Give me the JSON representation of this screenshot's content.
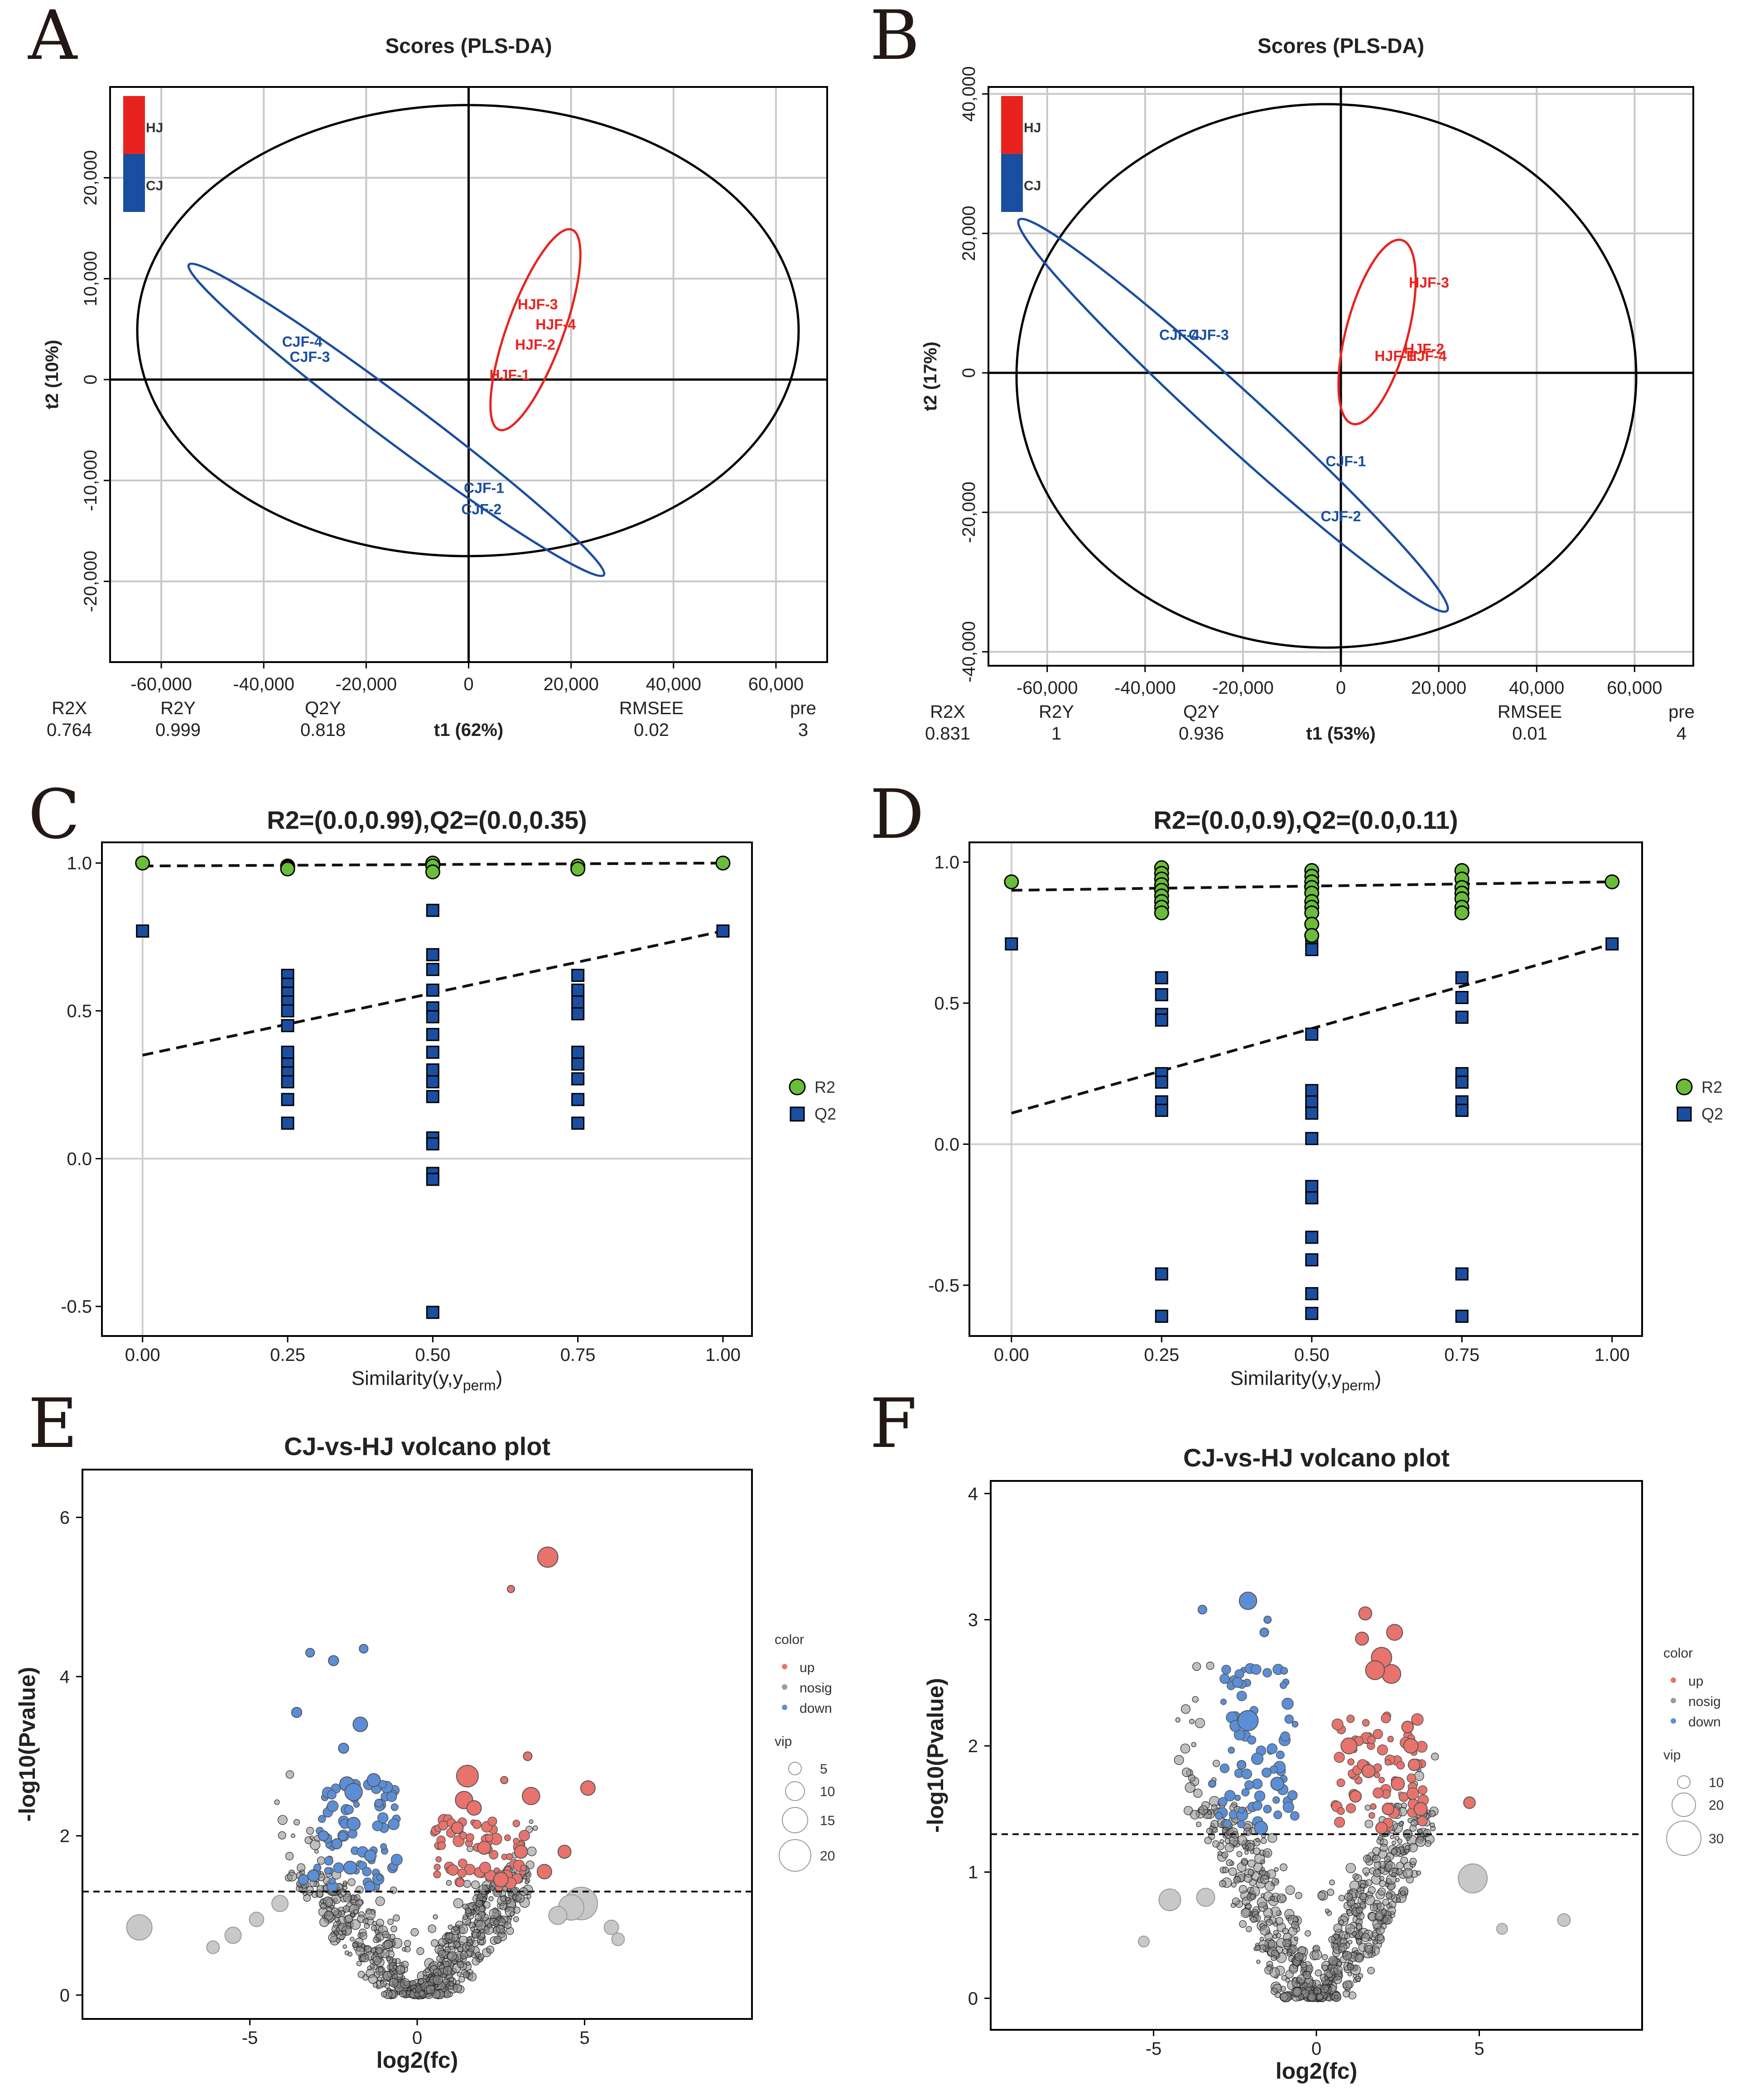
{
  "panel_letters": [
    "A",
    "B",
    "C",
    "D",
    "E",
    "F"
  ],
  "colors": {
    "red": "#e8231f",
    "blue": "#1a4ea1",
    "green": "#6abd3a",
    "up": "#e8736c",
    "down": "#5b8ed6",
    "nosig": "#c8c8c8"
  },
  "chart_data": [
    {
      "panel": "A",
      "type": "scatter",
      "title": "Scores (PLS-DA)",
      "xlabel": "t1 (62%)",
      "ylabel": "t2 (10%)",
      "xlim": [
        -70000,
        70000
      ],
      "ylim": [
        -28000,
        29000
      ],
      "xticks": [
        -60000,
        -40000,
        -20000,
        0,
        20000,
        40000,
        60000
      ],
      "xtick_labels": [
        "-60,000",
        "-40,000",
        "-20,000",
        "0",
        "20,000",
        "40,000",
        "60,000"
      ],
      "yticks": [
        -20000,
        -10000,
        0,
        10000,
        20000
      ],
      "ytick_labels": [
        "-20,000",
        "-10,000",
        "0",
        "10,000",
        "20,000"
      ],
      "legend": [
        {
          "name": "HJ",
          "color": "#e8231f"
        },
        {
          "name": "CJ",
          "color": "#1a4ea1"
        }
      ],
      "points": [
        {
          "label": "HJF-3",
          "x": 13500,
          "y": 7500,
          "group": "HJ"
        },
        {
          "label": "HJF-4",
          "x": 17000,
          "y": 5500,
          "group": "HJ"
        },
        {
          "label": "HJF-2",
          "x": 13000,
          "y": 3500,
          "group": "HJ"
        },
        {
          "label": "HJF-1",
          "x": 8000,
          "y": 500,
          "group": "HJ"
        },
        {
          "label": "CJF-4",
          "x": -32500,
          "y": 3800,
          "group": "CJ"
        },
        {
          "label": "CJF-3",
          "x": -31000,
          "y": 2300,
          "group": "CJ"
        },
        {
          "label": "CJF-1",
          "x": 3000,
          "y": -10700,
          "group": "CJ"
        },
        {
          "label": "CJF-2",
          "x": 2500,
          "y": -12800,
          "group": "CJ"
        }
      ],
      "stats": {
        "headers": [
          "R2X",
          "R2Y",
          "Q2Y",
          "RMSEE",
          "pre"
        ],
        "values": [
          "0.764",
          "0.999",
          "0.818",
          "0.02",
          "3"
        ]
      }
    },
    {
      "panel": "B",
      "type": "scatter",
      "title": "Scores (PLS-DA)",
      "xlabel": "t1 (53%)",
      "ylabel": "t2 (17%)",
      "xlim": [
        -72000,
        72000
      ],
      "ylim": [
        -42000,
        41000
      ],
      "xticks": [
        -60000,
        -40000,
        -20000,
        0,
        20000,
        40000,
        60000
      ],
      "xtick_labels": [
        "-60,000",
        "-40,000",
        "-20,000",
        "0",
        "20,000",
        "40,000",
        "60,000"
      ],
      "yticks": [
        -40000,
        -20000,
        0,
        20000,
        40000
      ],
      "ytick_labels": [
        "-40,000",
        "-20,000",
        "0",
        "20,000",
        "40,000"
      ],
      "legend": [
        {
          "name": "HJ",
          "color": "#e8231f"
        },
        {
          "name": "CJ",
          "color": "#1a4ea1"
        }
      ],
      "points": [
        {
          "label": "HJF-3",
          "x": 18000,
          "y": 13000,
          "group": "HJ"
        },
        {
          "label": "HJF-2",
          "x": 17000,
          "y": 3500,
          "group": "HJ"
        },
        {
          "label": "HJF-4",
          "x": 17500,
          "y": 2500,
          "group": "HJ"
        },
        {
          "label": "HJF-1",
          "x": 11000,
          "y": 2500,
          "group": "HJ"
        },
        {
          "label": "CJF-4",
          "x": -33000,
          "y": 5500,
          "group": "CJ"
        },
        {
          "label": "CJF-3",
          "x": -27000,
          "y": 5500,
          "group": "CJ"
        },
        {
          "label": "CJF-1",
          "x": 1000,
          "y": -12600,
          "group": "CJ"
        },
        {
          "label": "CJF-2",
          "x": 0,
          "y": -20500,
          "group": "CJ"
        }
      ],
      "stats": {
        "headers": [
          "R2X",
          "R2Y",
          "Q2Y",
          "RMSEE",
          "pre"
        ],
        "values": [
          "0.831",
          "1",
          "0.936",
          "0.01",
          "4"
        ]
      }
    },
    {
      "panel": "C",
      "type": "scatter",
      "title": "R2=(0.0,0.99),Q2=(0.0,0.35)",
      "xlabel": "Similarity(y,y",
      "xlabel_sub": "perm",
      "xlabel_end": ")",
      "xlim": [
        -0.07,
        1.05
      ],
      "ylim": [
        -0.6,
        1.07
      ],
      "xticks": [
        0,
        0.25,
        0.5,
        0.75,
        1.0
      ],
      "xtick_labels": [
        "0.00",
        "0.25",
        "0.50",
        "0.75",
        "1.00"
      ],
      "yticks": [
        -0.5,
        0,
        0.5,
        1.0
      ],
      "ytick_labels": [
        "-0.5",
        "0.0",
        "0.5",
        "1.0"
      ],
      "legend": [
        "R2",
        "Q2"
      ],
      "R2": [
        [
          0,
          1.0
        ],
        [
          0.25,
          0.99
        ],
        [
          0.25,
          0.985
        ],
        [
          0.25,
          0.98
        ],
        [
          0.5,
          1.0
        ],
        [
          0.5,
          0.99
        ],
        [
          0.5,
          0.97
        ],
        [
          0.75,
          0.99
        ],
        [
          0.75,
          0.98
        ],
        [
          1.0,
          1.0
        ]
      ],
      "Q2": [
        [
          0,
          0.77
        ],
        [
          0.25,
          0.62
        ],
        [
          0.25,
          0.59
        ],
        [
          0.25,
          0.56
        ],
        [
          0.25,
          0.53
        ],
        [
          0.25,
          0.5
        ],
        [
          0.25,
          0.45
        ],
        [
          0.25,
          0.36
        ],
        [
          0.25,
          0.32
        ],
        [
          0.25,
          0.29
        ],
        [
          0.25,
          0.26
        ],
        [
          0.25,
          0.2
        ],
        [
          0.25,
          0.12
        ],
        [
          0.5,
          0.84
        ],
        [
          0.5,
          0.69
        ],
        [
          0.5,
          0.64
        ],
        [
          0.5,
          0.57
        ],
        [
          0.5,
          0.51
        ],
        [
          0.5,
          0.48
        ],
        [
          0.5,
          0.42
        ],
        [
          0.5,
          0.36
        ],
        [
          0.5,
          0.3
        ],
        [
          0.5,
          0.26
        ],
        [
          0.5,
          0.21
        ],
        [
          0.5,
          0.07
        ],
        [
          0.5,
          0.05
        ],
        [
          0.5,
          -0.05
        ],
        [
          0.5,
          -0.07
        ],
        [
          0.5,
          -0.52
        ],
        [
          0.75,
          0.62
        ],
        [
          0.75,
          0.57
        ],
        [
          0.75,
          0.53
        ],
        [
          0.75,
          0.49
        ],
        [
          0.75,
          0.36
        ],
        [
          0.75,
          0.32
        ],
        [
          0.75,
          0.27
        ],
        [
          0.75,
          0.2
        ],
        [
          0.75,
          0.12
        ],
        [
          1.0,
          0.77
        ]
      ],
      "R2_line": [
        [
          0,
          0.99
        ],
        [
          1.0,
          1.0
        ]
      ],
      "Q2_line": [
        [
          0,
          0.35
        ],
        [
          1.0,
          0.77
        ]
      ]
    },
    {
      "panel": "D",
      "type": "scatter",
      "title": "R2=(0.0,0.9),Q2=(0.0,0.11)",
      "xlabel": "Similarity(y,y",
      "xlabel_sub": "perm",
      "xlabel_end": ")",
      "xlim": [
        -0.07,
        1.05
      ],
      "ylim": [
        -0.68,
        1.07
      ],
      "xticks": [
        0,
        0.25,
        0.5,
        0.75,
        1.0
      ],
      "xtick_labels": [
        "0.00",
        "0.25",
        "0.50",
        "0.75",
        "1.00"
      ],
      "yticks": [
        -0.5,
        0,
        0.5,
        1.0
      ],
      "ytick_labels": [
        "-0.5",
        "0.0",
        "0.5",
        "1.0"
      ],
      "legend": [
        "R2",
        "Q2"
      ],
      "R2": [
        [
          0,
          0.93
        ],
        [
          0.25,
          0.98
        ],
        [
          0.25,
          0.96
        ],
        [
          0.25,
          0.94
        ],
        [
          0.25,
          0.92
        ],
        [
          0.25,
          0.9
        ],
        [
          0.25,
          0.88
        ],
        [
          0.25,
          0.86
        ],
        [
          0.25,
          0.84
        ],
        [
          0.25,
          0.82
        ],
        [
          0.5,
          0.97
        ],
        [
          0.5,
          0.95
        ],
        [
          0.5,
          0.93
        ],
        [
          0.5,
          0.91
        ],
        [
          0.5,
          0.89
        ],
        [
          0.5,
          0.86
        ],
        [
          0.5,
          0.84
        ],
        [
          0.5,
          0.82
        ],
        [
          0.5,
          0.78
        ],
        [
          0.5,
          0.74
        ],
        [
          0.75,
          0.97
        ],
        [
          0.75,
          0.94
        ],
        [
          0.75,
          0.91
        ],
        [
          0.75,
          0.89
        ],
        [
          0.75,
          0.87
        ],
        [
          0.75,
          0.84
        ],
        [
          0.75,
          0.82
        ],
        [
          1.0,
          0.93
        ]
      ],
      "Q2": [
        [
          0,
          0.71
        ],
        [
          0.25,
          0.59
        ],
        [
          0.25,
          0.53
        ],
        [
          0.25,
          0.46
        ],
        [
          0.25,
          0.44
        ],
        [
          0.25,
          0.25
        ],
        [
          0.25,
          0.22
        ],
        [
          0.25,
          0.15
        ],
        [
          0.25,
          0.12
        ],
        [
          0.25,
          -0.46
        ],
        [
          0.25,
          -0.61
        ],
        [
          0.5,
          0.72
        ],
        [
          0.5,
          0.69
        ],
        [
          0.5,
          0.39
        ],
        [
          0.5,
          0.19
        ],
        [
          0.5,
          0.15
        ],
        [
          0.5,
          0.11
        ],
        [
          0.5,
          0.02
        ],
        [
          0.5,
          -0.15
        ],
        [
          0.5,
          -0.19
        ],
        [
          0.5,
          -0.33
        ],
        [
          0.5,
          -0.41
        ],
        [
          0.5,
          -0.53
        ],
        [
          0.5,
          -0.6
        ],
        [
          0.75,
          0.59
        ],
        [
          0.75,
          0.52
        ],
        [
          0.75,
          0.45
        ],
        [
          0.75,
          0.25
        ],
        [
          0.75,
          0.22
        ],
        [
          0.75,
          0.15
        ],
        [
          0.75,
          0.12
        ],
        [
          0.75,
          -0.46
        ],
        [
          0.75,
          -0.61
        ],
        [
          1.0,
          0.71
        ]
      ],
      "R2_line": [
        [
          0,
          0.9
        ],
        [
          1.0,
          0.93
        ]
      ],
      "Q2_line": [
        [
          0,
          0.11
        ],
        [
          1.0,
          0.71
        ]
      ]
    },
    {
      "panel": "E",
      "type": "scatter",
      "title": "CJ-vs-HJ volcano plot",
      "xlabel": "log2(fc)",
      "ylabel": "-log10(Pvalue)",
      "xlim": [
        -10,
        10
      ],
      "ylim": [
        -0.3,
        6.6
      ],
      "xticks": [
        -5,
        0,
        5
      ],
      "xtick_labels": [
        "-5",
        "0",
        "5"
      ],
      "yticks": [
        0,
        2,
        4,
        6
      ],
      "ytick_labels": [
        "0",
        "2",
        "4",
        "6"
      ],
      "threshold": 1.3,
      "legend_color_title": "color",
      "legend_color": [
        "up",
        "nosig",
        "down"
      ],
      "legend_vip_title": "vip",
      "legend_vip": [
        "5",
        "10",
        "15",
        "20"
      ],
      "up": [
        [
          3.9,
          5.5,
          14
        ],
        [
          2.8,
          5.1,
          5
        ],
        [
          1.5,
          2.75,
          15
        ],
        [
          1.4,
          2.45,
          12
        ],
        [
          1.7,
          2.35,
          10
        ],
        [
          3.4,
          2.5,
          12
        ],
        [
          5.1,
          2.6,
          10
        ],
        [
          1.2,
          2.1,
          8
        ],
        [
          2.0,
          1.85,
          9
        ],
        [
          3.1,
          1.8,
          9
        ],
        [
          4.4,
          1.8,
          9
        ],
        [
          3.8,
          1.55,
          10
        ],
        [
          2.5,
          1.45,
          10
        ],
        [
          3.3,
          3.0,
          6
        ],
        [
          2.6,
          2.7,
          5
        ]
      ],
      "down": [
        [
          -1.7,
          3.4,
          10
        ],
        [
          -2.1,
          2.65,
          10
        ],
        [
          -1.9,
          2.55,
          12
        ],
        [
          -1.3,
          2.7,
          9
        ],
        [
          -3.6,
          3.55,
          7
        ],
        [
          -3.2,
          4.3,
          6
        ],
        [
          -1.6,
          4.35,
          6
        ],
        [
          -2.5,
          4.2,
          7
        ],
        [
          -1.9,
          2.15,
          9
        ],
        [
          -1.4,
          1.75,
          8
        ],
        [
          -3.1,
          1.5,
          8
        ],
        [
          -2.4,
          1.9,
          7
        ],
        [
          -2.0,
          1.6,
          9
        ],
        [
          -2.8,
          2.0,
          7
        ],
        [
          -3.4,
          1.45,
          7
        ],
        [
          -2.2,
          3.1,
          7
        ]
      ],
      "nosig_big": [
        [
          -8.3,
          0.85,
          14
        ],
        [
          4.9,
          1.15,
          18
        ],
        [
          4.6,
          1.1,
          14
        ],
        [
          4.2,
          1.0,
          10
        ],
        [
          -5.5,
          0.75,
          9
        ],
        [
          -4.8,
          0.95,
          8
        ],
        [
          -6.1,
          0.6,
          7
        ],
        [
          6.0,
          0.7,
          7
        ],
        [
          5.8,
          0.85,
          8
        ],
        [
          -4.1,
          1.15,
          9
        ]
      ]
    },
    {
      "panel": "F",
      "type": "scatter",
      "title": "CJ-vs-HJ volcano plot",
      "xlabel": "log2(fc)",
      "ylabel": "-log10(Pvalue)",
      "xlim": [
        -10,
        10
      ],
      "ylim": [
        -0.25,
        4.1
      ],
      "xticks": [
        -5,
        0,
        5
      ],
      "xtick_labels": [
        "-5",
        "0",
        "5"
      ],
      "yticks": [
        0,
        1,
        2,
        3,
        4
      ],
      "ytick_labels": [
        "0",
        "1",
        "2",
        "3",
        "4"
      ],
      "threshold": 1.3,
      "legend_color_title": "color",
      "legend_color": [
        "up",
        "nosig",
        "down"
      ],
      "legend_vip_title": "vip",
      "legend_vip": [
        "10",
        "20",
        "30"
      ],
      "up": [
        [
          2.3,
          2.57,
          13
        ],
        [
          2.0,
          2.7,
          14
        ],
        [
          1.8,
          2.6,
          13
        ],
        [
          2.4,
          2.9,
          11
        ],
        [
          1.4,
          2.85,
          9
        ],
        [
          2.9,
          2.0,
          10
        ],
        [
          1.0,
          2.0,
          11
        ],
        [
          2.5,
          1.7,
          9
        ],
        [
          1.6,
          1.8,
          9
        ],
        [
          3.2,
          1.5,
          9
        ],
        [
          2.2,
          1.5,
          8
        ],
        [
          4.7,
          1.55,
          8
        ],
        [
          1.5,
          3.05,
          9
        ],
        [
          2.8,
          2.15,
          8
        ],
        [
          3.0,
          1.85,
          8
        ],
        [
          1.2,
          1.6,
          8
        ],
        [
          2.0,
          1.35,
          8
        ]
      ],
      "down": [
        [
          -2.1,
          3.15,
          12
        ],
        [
          -2.1,
          2.2,
          14
        ],
        [
          -1.2,
          1.7,
          9
        ],
        [
          -1.7,
          1.35,
          9
        ],
        [
          -3.5,
          3.08,
          6
        ],
        [
          -1.6,
          2.9,
          6
        ],
        [
          -2.3,
          1.85,
          6
        ],
        [
          -3.2,
          1.7,
          5
        ],
        [
          -1.5,
          3.0,
          5
        ]
      ],
      "nosig_big": [
        [
          4.8,
          0.95,
          16
        ],
        [
          -4.5,
          0.78,
          12
        ],
        [
          -3.4,
          0.8,
          10
        ],
        [
          5.7,
          0.55,
          6
        ],
        [
          7.6,
          0.62,
          7
        ],
        [
          -5.3,
          0.45,
          6
        ]
      ]
    }
  ]
}
